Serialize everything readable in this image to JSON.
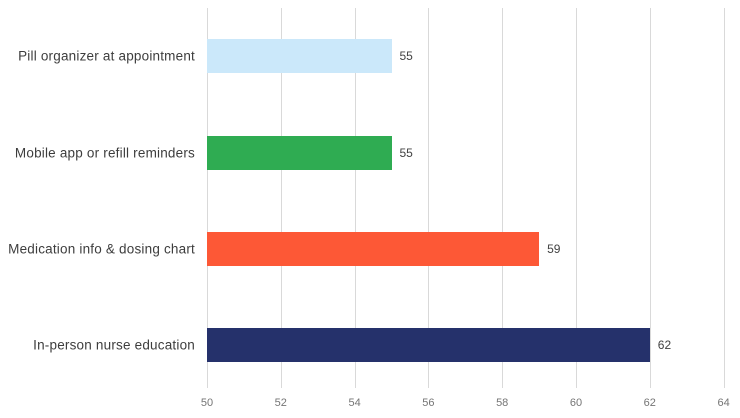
{
  "chart_data": {
    "type": "bar",
    "orientation": "horizontal",
    "categories": [
      "Pill organizer at appointment",
      "Mobile app or refill reminders",
      "Medication info & dosing chart",
      "In-person nurse education"
    ],
    "values": [
      55,
      55,
      59,
      62
    ],
    "value_labels": [
      "55",
      "55",
      "59",
      "62"
    ],
    "bar_colors": [
      "#cbe8fa",
      "#2fac52",
      "#fd5836",
      "#25316b"
    ],
    "title": "",
    "xlabel": "",
    "ylabel": "",
    "xlim": [
      50,
      64
    ],
    "xticks": [
      50,
      52,
      54,
      56,
      58,
      60,
      62,
      64
    ],
    "xtick_labels": [
      "50",
      "52",
      "54",
      "56",
      "58",
      "60",
      "62",
      "64"
    ],
    "grid": "vertical",
    "legend": "none"
  },
  "layout_colors": {
    "gridline": "#d9d9d9",
    "tick_text": "#757575",
    "category_text": "#3d3d3d",
    "value_text": "#424242",
    "background": "#ffffff"
  }
}
